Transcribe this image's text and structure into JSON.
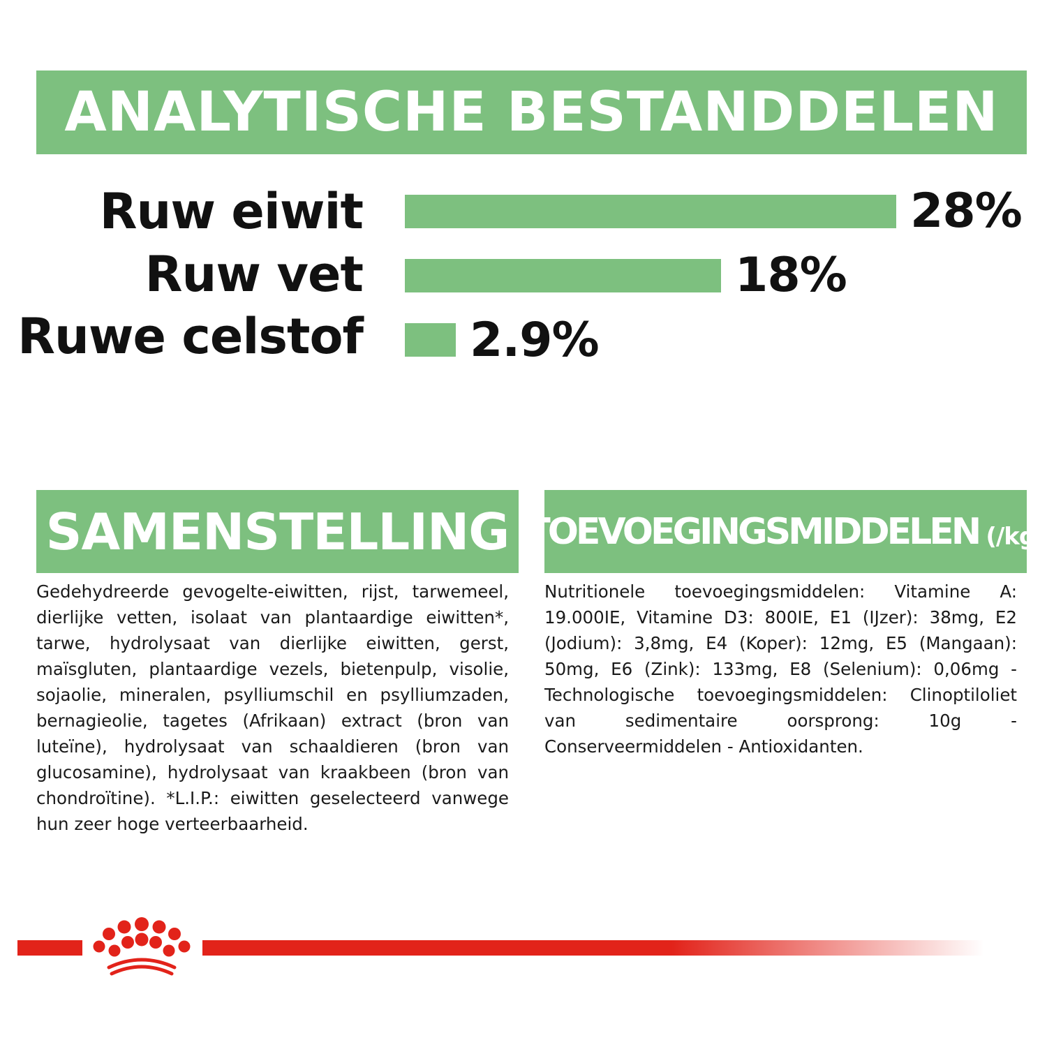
{
  "analysis": {
    "title": "ANALYTISCHE BESTANDDELEN",
    "items": [
      {
        "label": "Ruw eiwit",
        "value": "28%",
        "amount": 28
      },
      {
        "label": "Ruw vet",
        "value": "18%",
        "amount": 18
      },
      {
        "label": "Ruwe celstof",
        "value": "2.9%",
        "amount": 2.9
      }
    ]
  },
  "composition": {
    "title": "SAMENSTELLING",
    "text": "Gedehydreerde gevogelte-eiwitten, rijst, tarwemeel, dierlijke vetten, isolaat van plantaardige eiwitten*, tarwe, hydrolysaat van dierlijke eiwitten, gerst, maïsgluten, plantaardige vezels, bietenpulp, visolie, sojaolie, mineralen, psylliumschil en psylliumzaden, bernagieolie, tagetes (Afrikaan) extract (bron van luteïne), hydrolysaat van schaaldieren (bron van glucosamine), hydrolysaat van kraakbeen (bron van chondroïtine). *L.I.P.: eiwitten geselecteerd vanwege hun zeer hoge verteerbaarheid."
  },
  "additives": {
    "title": "TOEVOEGINGSMIDDELEN",
    "unit": "(/kg)",
    "text": "Nutritionele toevoegingsmiddelen: Vitamine A: 19.000IE, Vitamine D3: 800IE, E1 (IJzer): 38mg, E2 (Jodium): 3,8mg, E4 (Koper): 12mg, E5 (Mangaan): 50mg, E6 (Zink): 133mg, E8 (Selenium): 0,06mg - Technologische toevoegingsmiddelen: Clinoptiloliet van sedimentaire oorsprong: 10g - Conserveermiddelen - Antioxidanten."
  },
  "colors": {
    "green": "#7dc07f",
    "brand_red": "#e2231a"
  },
  "icons": {
    "logo": "royal-canin-crown-icon"
  }
}
